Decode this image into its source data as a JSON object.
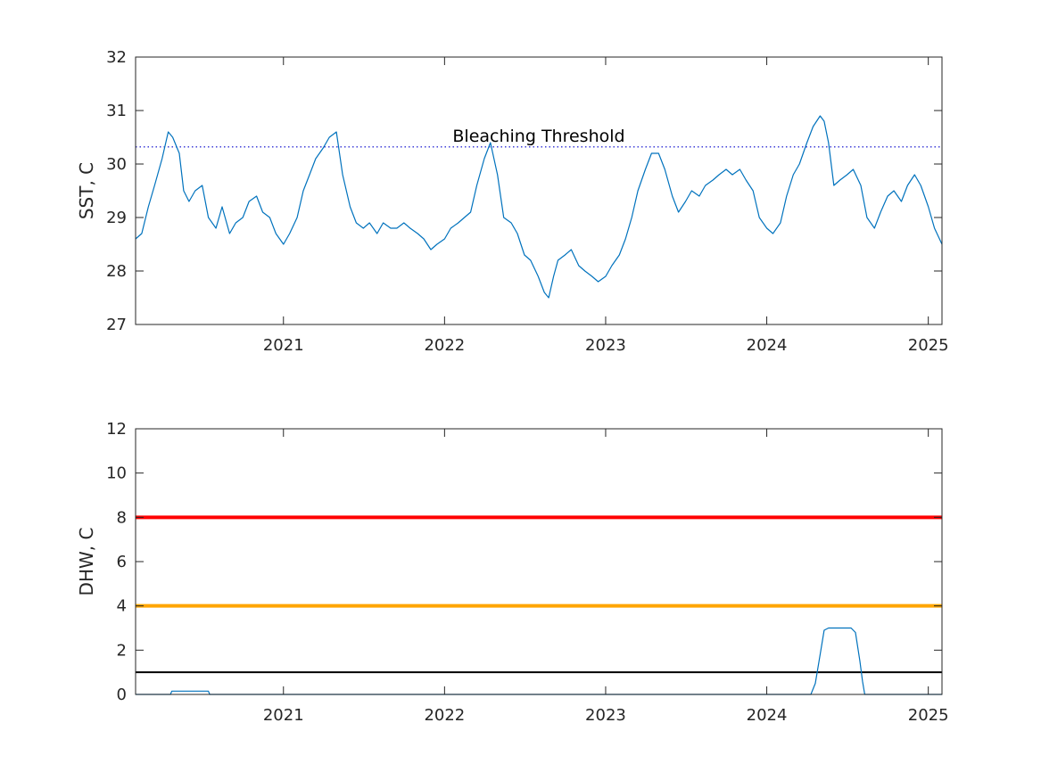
{
  "colors": {
    "series": "#0072BD",
    "threshold": "#0000CC",
    "axis": "#262626",
    "alert_red": "#FF0000",
    "alert_orange": "#FFA500",
    "alert_black": "#000000"
  },
  "chart_data": [
    {
      "type": "line",
      "ylabel": "SST, C",
      "ylim": [
        27,
        32
      ],
      "xlim": [
        "2020-02-01",
        "2025-02-01"
      ],
      "x_ticks": [
        {
          "date": "2021-01-01",
          "label": "2021"
        },
        {
          "date": "2022-01-01",
          "label": "2022"
        },
        {
          "date": "2023-01-01",
          "label": "2023"
        },
        {
          "date": "2024-01-01",
          "label": "2024"
        },
        {
          "date": "2025-01-01",
          "label": "2025"
        }
      ],
      "y_ticks": [
        27,
        28,
        29,
        30,
        31,
        32
      ],
      "threshold": {
        "value": 30.32,
        "label": "Bleaching Threshold",
        "style": "dotted"
      },
      "series": [
        {
          "x": [
            "2020-02-01",
            "2020-02-15",
            "2020-03-01",
            "2020-03-15",
            "2020-04-01",
            "2020-04-15",
            "2020-04-25",
            "2020-05-10",
            "2020-05-20",
            "2020-06-01",
            "2020-06-15",
            "2020-07-01",
            "2020-07-15",
            "2020-08-01",
            "2020-08-15",
            "2020-09-01",
            "2020-09-15",
            "2020-10-01",
            "2020-10-15",
            "2020-11-01",
            "2020-11-15",
            "2020-12-01",
            "2020-12-15",
            "2021-01-01",
            "2021-01-15",
            "2021-02-01",
            "2021-02-15",
            "2021-03-01",
            "2021-03-15",
            "2021-04-01",
            "2021-04-15",
            "2021-05-01",
            "2021-05-15",
            "2021-06-01",
            "2021-06-15",
            "2021-07-01",
            "2021-07-15",
            "2021-08-01",
            "2021-08-15",
            "2021-09-01",
            "2021-09-15",
            "2021-10-01",
            "2021-10-15",
            "2021-11-01",
            "2021-11-15",
            "2021-12-01",
            "2021-12-15",
            "2022-01-01",
            "2022-01-15",
            "2022-02-01",
            "2022-02-15",
            "2022-03-01",
            "2022-03-15",
            "2022-04-01",
            "2022-04-15",
            "2022-05-01",
            "2022-05-15",
            "2022-06-01",
            "2022-06-15",
            "2022-07-01",
            "2022-07-15",
            "2022-08-01",
            "2022-08-15",
            "2022-08-25",
            "2022-09-05",
            "2022-09-15",
            "2022-10-01",
            "2022-10-15",
            "2022-11-01",
            "2022-11-15",
            "2022-12-01",
            "2022-12-15",
            "2023-01-01",
            "2023-01-15",
            "2023-02-01",
            "2023-02-15",
            "2023-03-01",
            "2023-03-15",
            "2023-04-01",
            "2023-04-15",
            "2023-05-01",
            "2023-05-15",
            "2023-06-01",
            "2023-06-15",
            "2023-07-01",
            "2023-07-15",
            "2023-08-01",
            "2023-08-15",
            "2023-09-01",
            "2023-09-15",
            "2023-10-01",
            "2023-10-15",
            "2023-11-01",
            "2023-11-15",
            "2023-12-01",
            "2023-12-15",
            "2024-01-01",
            "2024-01-15",
            "2024-02-01",
            "2024-02-15",
            "2024-03-01",
            "2024-03-15",
            "2024-04-01",
            "2024-04-15",
            "2024-05-01",
            "2024-05-10",
            "2024-05-20",
            "2024-06-01",
            "2024-06-15",
            "2024-07-01",
            "2024-07-15",
            "2024-08-01",
            "2024-08-15",
            "2024-09-01",
            "2024-09-15",
            "2024-10-01",
            "2024-10-15",
            "2024-11-01",
            "2024-11-15",
            "2024-12-01",
            "2024-12-15",
            "2025-01-01",
            "2025-01-15",
            "2025-02-01"
          ],
          "y": [
            28.6,
            28.7,
            29.2,
            29.6,
            30.1,
            30.6,
            30.5,
            30.2,
            29.5,
            29.3,
            29.5,
            29.6,
            29.0,
            28.8,
            29.2,
            28.7,
            28.9,
            29.0,
            29.3,
            29.4,
            29.1,
            29.0,
            28.7,
            28.5,
            28.7,
            29.0,
            29.5,
            29.8,
            30.1,
            30.3,
            30.5,
            30.6,
            29.8,
            29.2,
            28.9,
            28.8,
            28.9,
            28.7,
            28.9,
            28.8,
            28.8,
            28.9,
            28.8,
            28.7,
            28.6,
            28.4,
            28.5,
            28.6,
            28.8,
            28.9,
            29.0,
            29.1,
            29.6,
            30.1,
            30.4,
            29.8,
            29.0,
            28.9,
            28.7,
            28.3,
            28.2,
            27.9,
            27.6,
            27.5,
            27.9,
            28.2,
            28.3,
            28.4,
            28.1,
            28.0,
            27.9,
            27.8,
            27.9,
            28.1,
            28.3,
            28.6,
            29.0,
            29.5,
            29.9,
            30.2,
            30.2,
            29.9,
            29.4,
            29.1,
            29.3,
            29.5,
            29.4,
            29.6,
            29.7,
            29.8,
            29.9,
            29.8,
            29.9,
            29.7,
            29.5,
            29.0,
            28.8,
            28.7,
            28.9,
            29.4,
            29.8,
            30.0,
            30.4,
            30.7,
            30.9,
            30.8,
            30.4,
            29.6,
            29.7,
            29.8,
            29.9,
            29.6,
            29.0,
            28.8,
            29.1,
            29.4,
            29.5,
            29.3,
            29.6,
            29.8,
            29.6,
            29.2,
            28.8,
            28.5
          ]
        }
      ]
    },
    {
      "type": "line",
      "ylabel": "DHW, C",
      "ylim": [
        0,
        12
      ],
      "xlim": [
        "2020-02-01",
        "2025-02-01"
      ],
      "x_ticks": [
        {
          "date": "2021-01-01",
          "label": "2021"
        },
        {
          "date": "2022-01-01",
          "label": "2022"
        },
        {
          "date": "2023-01-01",
          "label": "2023"
        },
        {
          "date": "2024-01-01",
          "label": "2024"
        },
        {
          "date": "2025-01-01",
          "label": "2025"
        }
      ],
      "y_ticks": [
        0,
        2,
        4,
        6,
        8,
        10,
        12
      ],
      "reference_lines": [
        {
          "value": 8,
          "color": "#FF0000"
        },
        {
          "value": 4,
          "color": "#FFA500"
        },
        {
          "value": 1,
          "color": "#000000"
        }
      ],
      "series": [
        {
          "x": [
            "2020-02-01",
            "2020-04-20",
            "2020-04-23",
            "2020-07-15",
            "2020-07-18",
            "2024-04-10",
            "2024-04-20",
            "2024-05-01",
            "2024-05-10",
            "2024-05-20",
            "2024-07-10",
            "2024-07-20",
            "2024-07-30",
            "2024-08-05",
            "2024-08-10",
            "2025-02-01"
          ],
          "y": [
            0,
            0,
            0.15,
            0.15,
            0,
            0,
            0.5,
            1.8,
            2.9,
            3.0,
            3.0,
            2.8,
            1.5,
            0.6,
            0,
            0
          ]
        }
      ]
    }
  ]
}
